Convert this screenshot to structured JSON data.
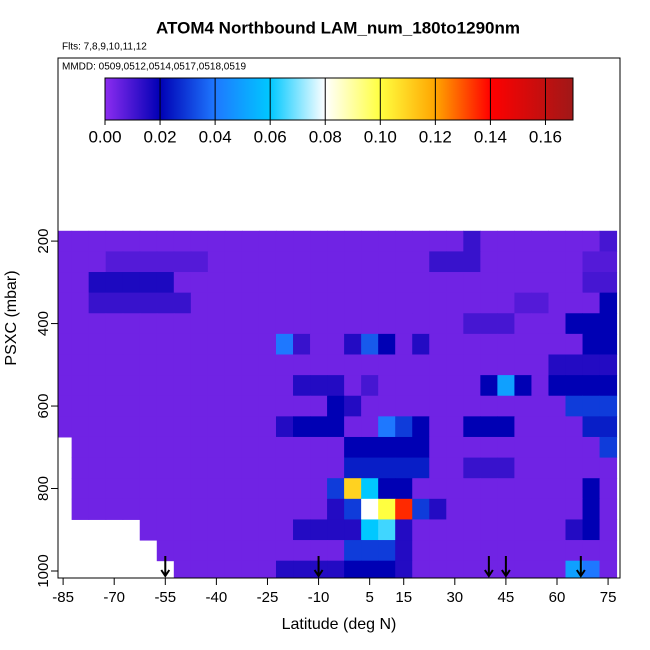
{
  "chart_data": {
    "type": "heatmap",
    "title": "ATOM4 Northbound LAM_num_180to1290nm",
    "subtitle": "Flts: 7,8,9,10,11,12",
    "annotation": "MMDD: 0509,0512,0514,0517,0518,0519",
    "xlabel": "Latitude (deg N)",
    "ylabel": "PSXC (mbar)",
    "xlim": [
      -86.5,
      78.5
    ],
    "ylim": [
      1017,
      -244
    ],
    "xticks": [
      -85,
      -70,
      -55,
      -40,
      -25,
      -10,
      5,
      15,
      30,
      45,
      60,
      75
    ],
    "yticks": [
      200,
      400,
      600,
      800,
      1000
    ],
    "x": [
      -85,
      -80,
      -75,
      -70,
      -65,
      -60,
      -55,
      -50,
      -45,
      -40,
      -35,
      -30,
      -25,
      -20,
      -15,
      -10,
      -5,
      0,
      5,
      10,
      15,
      20,
      25,
      30,
      35,
      40,
      45,
      50,
      55,
      60,
      65,
      70,
      75
    ],
    "y": [
      200,
      250,
      300,
      350,
      400,
      450,
      500,
      550,
      600,
      650,
      700,
      750,
      800,
      850,
      900,
      950,
      1000
    ],
    "values": [
      [
        0.004,
        0.004,
        0.004,
        0.004,
        0.004,
        0.004,
        0.004,
        0.004,
        0.004,
        0.004,
        0.004,
        0.004,
        0.004,
        0.004,
        0.004,
        0.004,
        0.004,
        0.004,
        0.004,
        0.004,
        0.004,
        0.004,
        0.004,
        0.004,
        0.012,
        0.004,
        0.004,
        0.004,
        0.004,
        0.004,
        0.004,
        0.004,
        0.01
      ],
      [
        0.004,
        0.004,
        0.004,
        0.008,
        0.008,
        0.008,
        0.008,
        0.008,
        0.008,
        0.004,
        0.004,
        0.004,
        0.004,
        0.004,
        0.004,
        0.004,
        0.004,
        0.004,
        0.004,
        0.004,
        0.004,
        0.004,
        0.012,
        0.012,
        0.012,
        0.004,
        0.004,
        0.004,
        0.004,
        0.004,
        0.004,
        0.008,
        0.008
      ],
      [
        0.004,
        0.004,
        0.016,
        0.016,
        0.016,
        0.016,
        0.016,
        0.004,
        0.004,
        0.004,
        0.004,
        0.004,
        0.004,
        0.004,
        0.004,
        0.004,
        0.004,
        0.004,
        0.004,
        0.004,
        0.004,
        0.004,
        0.004,
        0.004,
        0.004,
        0.004,
        0.004,
        0.004,
        0.004,
        0.004,
        0.004,
        0.01,
        0.01
      ],
      [
        0.004,
        0.004,
        0.012,
        0.012,
        0.012,
        0.012,
        0.012,
        0.012,
        0.004,
        0.004,
        0.004,
        0.004,
        0.004,
        0.004,
        0.004,
        0.004,
        0.004,
        0.004,
        0.004,
        0.004,
        0.004,
        0.004,
        0.004,
        0.004,
        0.004,
        0.004,
        0.004,
        0.008,
        0.008,
        0.004,
        0.004,
        0.004,
        0.02
      ],
      [
        0.004,
        0.004,
        0.004,
        0.004,
        0.004,
        0.004,
        0.004,
        0.004,
        0.004,
        0.004,
        0.004,
        0.004,
        0.004,
        0.004,
        0.004,
        0.004,
        0.004,
        0.004,
        0.004,
        0.004,
        0.004,
        0.004,
        0.004,
        0.004,
        0.01,
        0.01,
        0.01,
        0.004,
        0.004,
        0.004,
        0.02,
        0.02,
        0.02
      ],
      [
        0.004,
        0.004,
        0.004,
        0.004,
        0.004,
        0.004,
        0.004,
        0.004,
        0.004,
        0.004,
        0.004,
        0.004,
        0.004,
        0.04,
        0.012,
        0.004,
        0.004,
        0.015,
        0.035,
        0.02,
        0.004,
        0.015,
        0.004,
        0.004,
        0.004,
        0.004,
        0.004,
        0.004,
        0.004,
        0.004,
        0.004,
        0.02,
        0.02
      ],
      [
        0.004,
        0.004,
        0.004,
        0.004,
        0.004,
        0.004,
        0.004,
        0.004,
        0.004,
        0.004,
        0.004,
        0.004,
        0.004,
        0.004,
        0.004,
        0.004,
        0.004,
        0.004,
        0.004,
        0.004,
        0.004,
        0.004,
        0.004,
        0.004,
        0.004,
        0.004,
        0.004,
        0.004,
        0.004,
        0.015,
        0.015,
        0.015,
        0.015
      ],
      [
        0.004,
        0.004,
        0.004,
        0.004,
        0.004,
        0.004,
        0.004,
        0.004,
        0.004,
        0.004,
        0.004,
        0.004,
        0.004,
        0.004,
        0.015,
        0.015,
        0.015,
        0.004,
        0.01,
        0.004,
        0.004,
        0.004,
        0.004,
        0.004,
        0.004,
        0.02,
        0.05,
        0.02,
        0.004,
        0.02,
        0.02,
        0.02,
        0.02
      ],
      [
        0.004,
        0.004,
        0.004,
        0.004,
        0.004,
        0.004,
        0.004,
        0.004,
        0.004,
        0.004,
        0.004,
        0.004,
        0.004,
        0.004,
        0.004,
        0.004,
        0.02,
        0.015,
        0.004,
        0.004,
        0.004,
        0.004,
        0.004,
        0.004,
        0.004,
        0.004,
        0.004,
        0.004,
        0.004,
        0.004,
        0.03,
        0.03,
        0.03
      ],
      [
        0.004,
        0.004,
        0.004,
        0.004,
        0.004,
        0.004,
        0.004,
        0.004,
        0.004,
        0.004,
        0.004,
        0.004,
        0.004,
        0.015,
        0.02,
        0.02,
        0.02,
        0.004,
        0.004,
        0.04,
        0.03,
        0.02,
        0.004,
        0.004,
        0.02,
        0.02,
        0.02,
        0.004,
        0.004,
        0.004,
        0.004,
        0.025,
        0.025
      ],
      [
        null,
        0.004,
        0.004,
        0.004,
        0.004,
        0.004,
        0.004,
        0.004,
        0.004,
        0.004,
        0.004,
        0.004,
        0.004,
        0.004,
        0.004,
        0.004,
        0.004,
        0.02,
        0.02,
        0.02,
        0.02,
        0.02,
        0.004,
        0.004,
        0.004,
        0.004,
        0.004,
        0.004,
        0.004,
        0.004,
        0.004,
        0.004,
        0.03
      ],
      [
        null,
        0.004,
        0.004,
        0.004,
        0.004,
        0.004,
        0.004,
        0.004,
        0.004,
        0.004,
        0.004,
        0.004,
        0.004,
        0.004,
        0.004,
        0.004,
        0.004,
        0.025,
        0.025,
        0.025,
        0.025,
        0.025,
        0.004,
        0.004,
        0.012,
        0.012,
        0.012,
        0.004,
        0.004,
        0.004,
        0.004,
        0.004,
        0.004
      ],
      [
        null,
        0.004,
        0.004,
        0.004,
        0.004,
        0.004,
        0.004,
        0.004,
        0.004,
        0.004,
        0.004,
        0.004,
        0.004,
        0.004,
        0.004,
        0.004,
        0.03,
        0.11,
        0.06,
        0.02,
        0.02,
        0.004,
        0.004,
        0.004,
        0.004,
        0.004,
        0.004,
        0.004,
        0.004,
        0.004,
        0.004,
        0.02,
        0.004
      ],
      [
        null,
        0.004,
        0.004,
        0.004,
        0.004,
        0.004,
        0.004,
        0.004,
        0.004,
        0.004,
        0.004,
        0.004,
        0.004,
        0.004,
        0.004,
        0.004,
        0.015,
        0.03,
        0.08,
        0.1,
        0.135,
        0.03,
        0.015,
        0.004,
        0.004,
        0.004,
        0.004,
        0.004,
        0.004,
        0.004,
        0.004,
        0.02,
        0.004
      ],
      [
        null,
        null,
        null,
        null,
        null,
        0.004,
        0.004,
        0.004,
        0.004,
        0.004,
        0.004,
        0.004,
        0.004,
        0.004,
        0.015,
        0.015,
        0.015,
        0.015,
        0.06,
        0.065,
        0.015,
        0.004,
        0.004,
        0.004,
        0.004,
        0.004,
        0.004,
        0.004,
        0.004,
        0.004,
        0.015,
        0.02,
        0.004
      ],
      [
        null,
        null,
        null,
        null,
        null,
        null,
        0.004,
        0.004,
        0.004,
        0.004,
        0.004,
        0.004,
        0.004,
        0.004,
        0.004,
        0.004,
        0.004,
        0.03,
        0.03,
        0.03,
        0.015,
        0.004,
        0.004,
        0.004,
        0.004,
        0.004,
        0.004,
        0.004,
        0.004,
        0.004,
        0.004,
        0.004,
        0.004
      ],
      [
        null,
        null,
        null,
        null,
        null,
        null,
        null,
        0.004,
        0.004,
        0.004,
        0.004,
        0.004,
        0.004,
        0.015,
        0.015,
        0.015,
        0.015,
        0.02,
        0.02,
        0.02,
        0.015,
        0.004,
        0.004,
        0.004,
        0.004,
        0.004,
        0.004,
        0.004,
        0.004,
        0.004,
        0.05,
        0.04,
        0.004
      ]
    ],
    "flight_markers": [
      -55,
      -10,
      40,
      45,
      67
    ],
    "colorbar_lim": [
      0,
      0.17
    ],
    "colorbar_ticks": [
      {
        "value": 0,
        "label": "0.00"
      },
      {
        "value": 0.02,
        "label": "0.02"
      },
      {
        "value": 0.04,
        "label": "0.04"
      },
      {
        "value": 0.06,
        "label": "0.06"
      },
      {
        "value": 0.08,
        "label": "0.08"
      },
      {
        "value": 0.1,
        "label": "0.10"
      },
      {
        "value": 0.12,
        "label": "0.12"
      },
      {
        "value": 0.14,
        "label": "0.14"
      },
      {
        "value": 0.16,
        "label": "0.16"
      }
    ],
    "colorscale": [
      {
        "value": 0,
        "color": "#8c2cf0"
      },
      {
        "value": 0.02,
        "color": "#0000b4"
      },
      {
        "value": 0.04,
        "color": "#1e78ff"
      },
      {
        "value": 0.06,
        "color": "#00c8ff"
      },
      {
        "value": 0.08,
        "color": "#ffffff"
      },
      {
        "value": 0.1,
        "color": "#ffff40"
      },
      {
        "value": 0.12,
        "color": "#ffa500"
      },
      {
        "value": 0.14,
        "color": "#ff0000"
      },
      {
        "value": 0.17,
        "color": "#a01818"
      }
    ]
  }
}
